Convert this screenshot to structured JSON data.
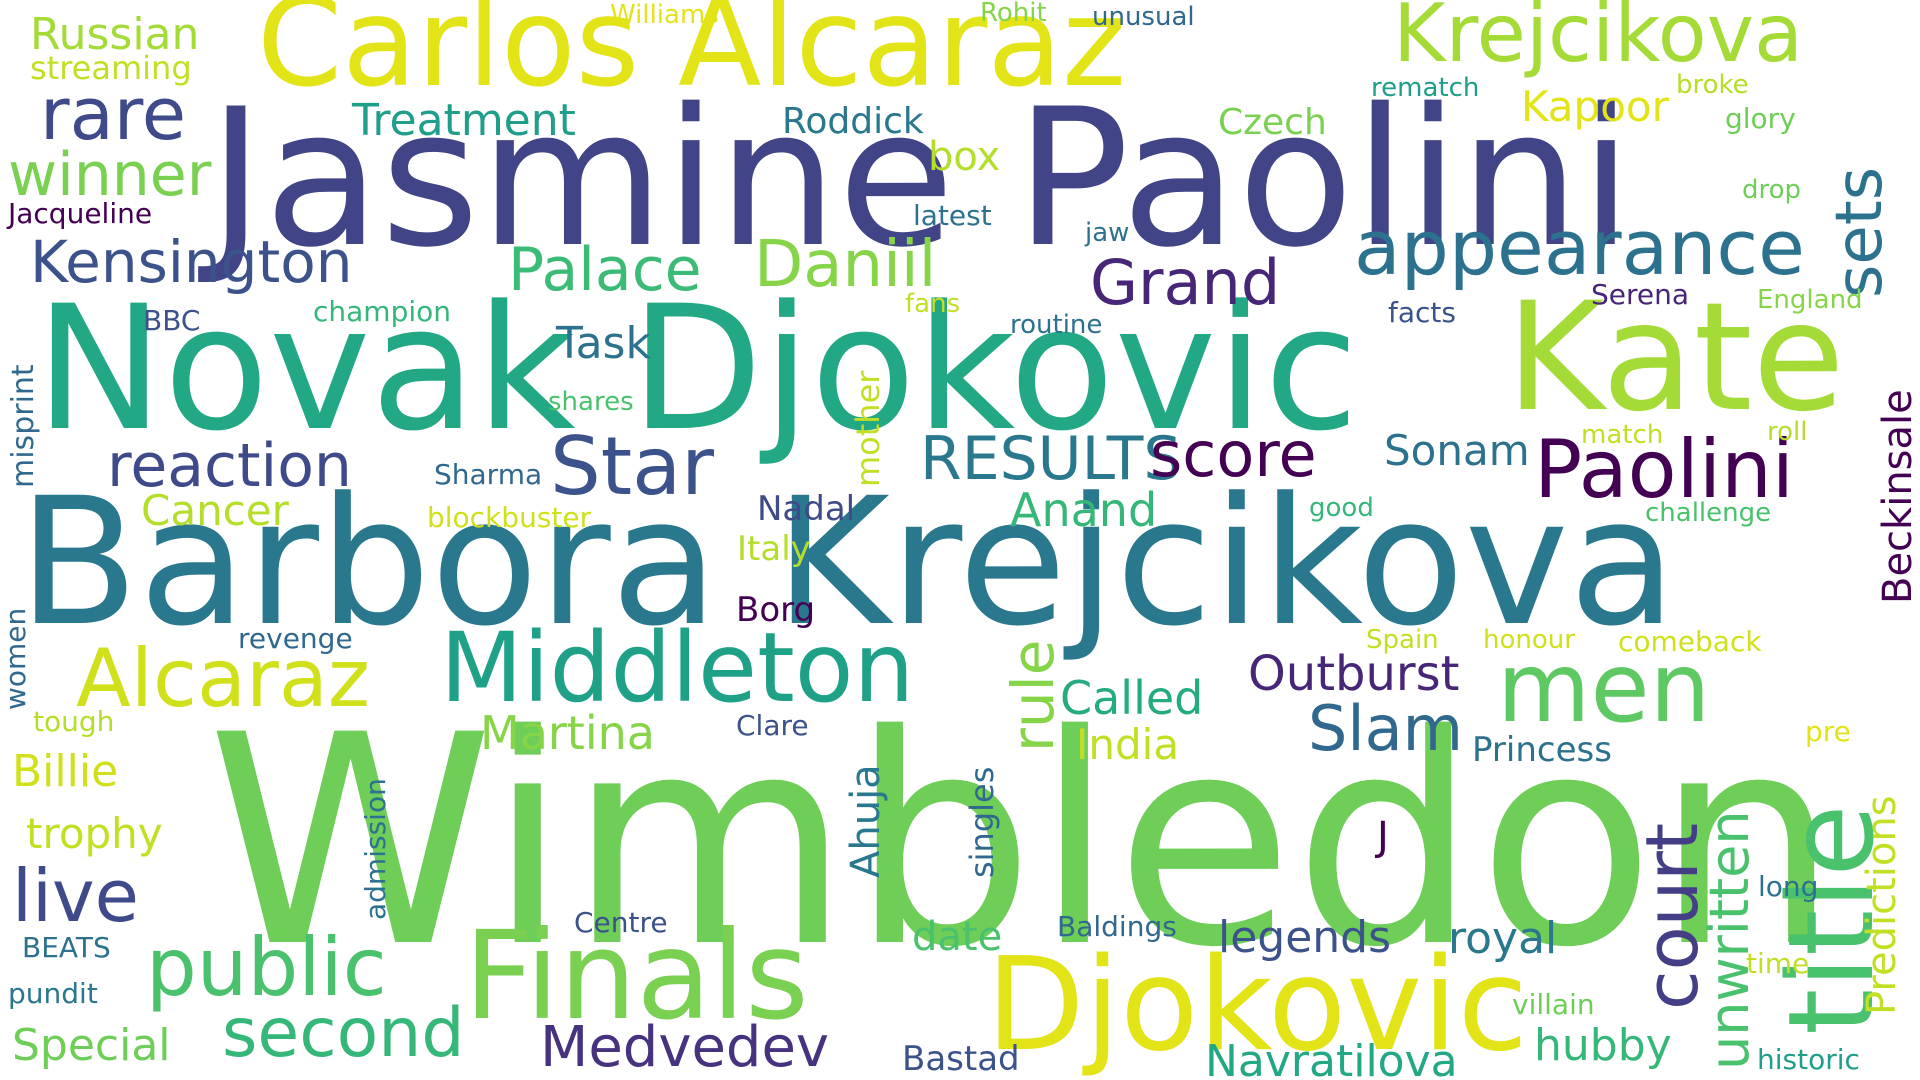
{
  "palette": {
    "purple": "#440154",
    "indigo": "#3b528b",
    "blue": "#31688e",
    "teal": "#26828e",
    "sea": "#1f9e89",
    "green": "#35b779",
    "lime": "#6ece58",
    "yellowgreen": "#b5de2b",
    "yellow": "#e2e418"
  },
  "words": [
    {
      "text": "Wimbledon",
      "color": "#6ece58"
    },
    {
      "text": "Jasmine Paolini",
      "color": "#414487"
    },
    {
      "text": "Novak Djokovic",
      "color": "#22a884"
    },
    {
      "text": "Barbora Krejcikova",
      "color": "#2a788e"
    },
    {
      "text": "Carlos Alcaraz",
      "color": "#e2e418"
    },
    {
      "text": "Kate",
      "color": "#a5db36"
    },
    {
      "text": "Djokovic",
      "color": "#e2e418"
    },
    {
      "text": "Finals",
      "color": "#7ad151"
    },
    {
      "text": "Middleton",
      "color": "#1fa187"
    },
    {
      "text": "title",
      "color": "#4ac16d"
    },
    {
      "text": "Krejcikova",
      "color": "#a5db36"
    },
    {
      "text": "appearance",
      "color": "#2c728e"
    },
    {
      "text": "Paolini",
      "color": "#440154"
    },
    {
      "text": "men",
      "color": "#5ec962"
    },
    {
      "text": "public",
      "color": "#4ac16d"
    },
    {
      "text": "Alcaraz",
      "color": "#d0e11c"
    },
    {
      "text": "Star",
      "color": "#3b528b"
    },
    {
      "text": "rare",
      "color": "#3e4a89"
    },
    {
      "text": "Medvedev",
      "color": "#46327e"
    },
    {
      "text": "second",
      "color": "#35b779"
    },
    {
      "text": "court",
      "color": "#433e85"
    },
    {
      "text": "reaction",
      "color": "#3e4a89"
    },
    {
      "text": "Kensington",
      "color": "#3b528b"
    },
    {
      "text": "winner",
      "color": "#7ad151"
    },
    {
      "text": "live",
      "color": "#3e4a89"
    },
    {
      "text": "Daniil",
      "color": "#86d549"
    },
    {
      "text": "Palace",
      "color": "#3bbb75"
    },
    {
      "text": "sets",
      "color": "#2c728e"
    },
    {
      "text": "Grand",
      "color": "#482677"
    },
    {
      "text": "RESULTS",
      "color": "#2a788e"
    },
    {
      "text": "score",
      "color": "#440154"
    },
    {
      "text": "Slam",
      "color": "#31688e"
    },
    {
      "text": "unwritten",
      "color": "#4ac16d"
    },
    {
      "text": "Navratilova",
      "color": "#22a884"
    },
    {
      "text": "Outburst",
      "color": "#482677"
    },
    {
      "text": "Predictions",
      "color": "#c2df23"
    },
    {
      "text": "Beckinsale",
      "color": "#440154"
    },
    {
      "text": "rule",
      "color": "#86d549"
    },
    {
      "text": "Called",
      "color": "#25ab82"
    },
    {
      "text": "Martina",
      "color": "#86d549"
    },
    {
      "text": "Anand",
      "color": "#35b779"
    },
    {
      "text": "Special",
      "color": "#6ece58"
    },
    {
      "text": "Treatment",
      "color": "#1f9e89"
    },
    {
      "text": "Russian",
      "color": "#a5db36"
    },
    {
      "text": "Task",
      "color": "#2c728e"
    },
    {
      "text": "legends",
      "color": "#3b528b"
    },
    {
      "text": "royal",
      "color": "#2a788e"
    },
    {
      "text": "hubby",
      "color": "#35b779"
    },
    {
      "text": "Billie",
      "color": "#d0e11c"
    },
    {
      "text": "Sonam",
      "color": "#2c728e"
    },
    {
      "text": "Kapoor",
      "color": "#e2e418"
    },
    {
      "text": "Cancer",
      "color": "#b5de2b"
    },
    {
      "text": "India",
      "color": "#c2df23"
    },
    {
      "text": "trophy",
      "color": "#c2df23"
    },
    {
      "text": "Ahuja",
      "color": "#2a788e"
    },
    {
      "text": "date",
      "color": "#4ac16d"
    },
    {
      "text": "box",
      "color": "#b5de2b"
    },
    {
      "text": "Princess",
      "color": "#2c728e"
    },
    {
      "text": "Roddick",
      "color": "#2a788e"
    },
    {
      "text": "Czech",
      "color": "#7ad151"
    },
    {
      "text": "Bastad",
      "color": "#3b528b"
    },
    {
      "text": "Nadal",
      "color": "#3e4a89"
    },
    {
      "text": "Italy",
      "color": "#b5de2b"
    },
    {
      "text": "Borg",
      "color": "#440154"
    },
    {
      "text": "mother",
      "color": "#c2df23"
    },
    {
      "text": "singles",
      "color": "#31688e"
    },
    {
      "text": "streaming",
      "color": "#c2df23"
    },
    {
      "text": "misprint",
      "color": "#31688e"
    },
    {
      "text": "Clare",
      "color": "#3b528b"
    },
    {
      "text": "J",
      "color": "#440154"
    },
    {
      "text": "women",
      "color": "#31688e"
    },
    {
      "text": "admission",
      "color": "#2c728e"
    },
    {
      "text": "Baldings",
      "color": "#31688e"
    },
    {
      "text": "Centre",
      "color": "#3b528b"
    },
    {
      "text": "Jacqueline",
      "color": "#440154"
    },
    {
      "text": "latest",
      "color": "#2c728e"
    },
    {
      "text": "champion",
      "color": "#35b779"
    },
    {
      "text": "revenge",
      "color": "#31688e"
    },
    {
      "text": "blockbuster",
      "color": "#d0e11c"
    },
    {
      "text": "Sharma",
      "color": "#31688e"
    },
    {
      "text": "shares",
      "color": "#4ac16d"
    },
    {
      "text": "routine",
      "color": "#2c728e"
    },
    {
      "text": "BBC",
      "color": "#3b528b"
    },
    {
      "text": "fans",
      "color": "#c2df23"
    },
    {
      "text": "facts",
      "color": "#3b528b"
    },
    {
      "text": "Serena",
      "color": "#482677"
    },
    {
      "text": "England",
      "color": "#86d549"
    },
    {
      "text": "glory",
      "color": "#6ece58"
    },
    {
      "text": "drop",
      "color": "#6ece58"
    },
    {
      "text": "broke",
      "color": "#b5de2b"
    },
    {
      "text": "rematch",
      "color": "#1f9e89"
    },
    {
      "text": "unusual",
      "color": "#31688e"
    },
    {
      "text": "Rohit",
      "color": "#86d549"
    },
    {
      "text": "Williams",
      "color": "#e2e418"
    },
    {
      "text": "jaw",
      "color": "#2c728e"
    },
    {
      "text": "match",
      "color": "#c2df23"
    },
    {
      "text": "roll",
      "color": "#b5de2b"
    },
    {
      "text": "good",
      "color": "#35b779"
    },
    {
      "text": "challenge",
      "color": "#4ac16d"
    },
    {
      "text": "Spain",
      "color": "#c2df23"
    },
    {
      "text": "honour",
      "color": "#d0e11c"
    },
    {
      "text": "comeback",
      "color": "#d0e11c"
    },
    {
      "text": "pre",
      "color": "#e2e418"
    },
    {
      "text": "long",
      "color": "#2c728e"
    },
    {
      "text": "time",
      "color": "#c2df23"
    },
    {
      "text": "villain",
      "color": "#6ece58"
    },
    {
      "text": "historic",
      "color": "#1f9e89"
    },
    {
      "text": "tough",
      "color": "#b5de2b"
    },
    {
      "text": "BEATS",
      "color": "#2c728e"
    },
    {
      "text": "pundit",
      "color": "#2a788e"
    }
  ]
}
